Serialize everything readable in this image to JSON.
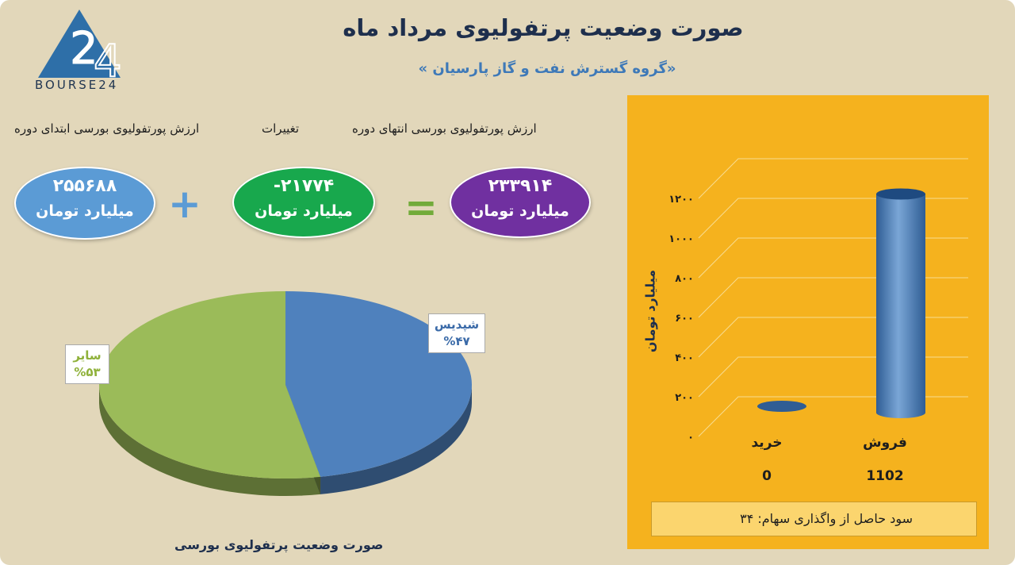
{
  "header": {
    "title": "صورت وضعیت پرتفولیوی مرداد ماه",
    "subtitle": "«گروه گسترش نفت و گاز پارسیان »",
    "logo_text": "BOURSE24"
  },
  "summary": {
    "end_label": "ارزش پورتفولیوی بورسی انتهای دوره",
    "change_label": "تغییرات",
    "start_label": "ارزش پورتفولیوی بورسی ابتدای دوره",
    "start_value": "۲۵۵۶۸۸",
    "change_value": "-۲۱۷۷۴",
    "end_value": "۲۳۳۹۱۴",
    "unit": "میلیارد تومان",
    "plus": "+",
    "equals": "=",
    "colors": {
      "start": "#5b9bd5",
      "change": "#18a84d",
      "end": "#7030a0"
    }
  },
  "chart_data": [
    {
      "type": "pie",
      "title": "صورت وضعیت پرتفولیوی بورسی",
      "slices": [
        {
          "name": "شپدیس",
          "label": "%۴۷",
          "value": 47,
          "color": "#4f81bd"
        },
        {
          "name": "سایر",
          "label": "%۵۳",
          "value": 53,
          "color": "#9bbb59"
        }
      ]
    },
    {
      "type": "bar",
      "ylabel": "میلیارد تومان",
      "ylim": [
        0,
        1200
      ],
      "yticks": [
        "۰",
        "۲۰۰",
        "۴۰۰",
        "۶۰۰",
        "۸۰۰",
        "۱۰۰۰",
        "۱۲۰۰"
      ],
      "categories": [
        "خرید",
        "فروش"
      ],
      "values": [
        0,
        1102
      ],
      "value_labels": [
        "0",
        "1102"
      ],
      "color": "#4f81bd",
      "note": "سود حاصل از واگذاری سهام: ۳۴"
    }
  ]
}
